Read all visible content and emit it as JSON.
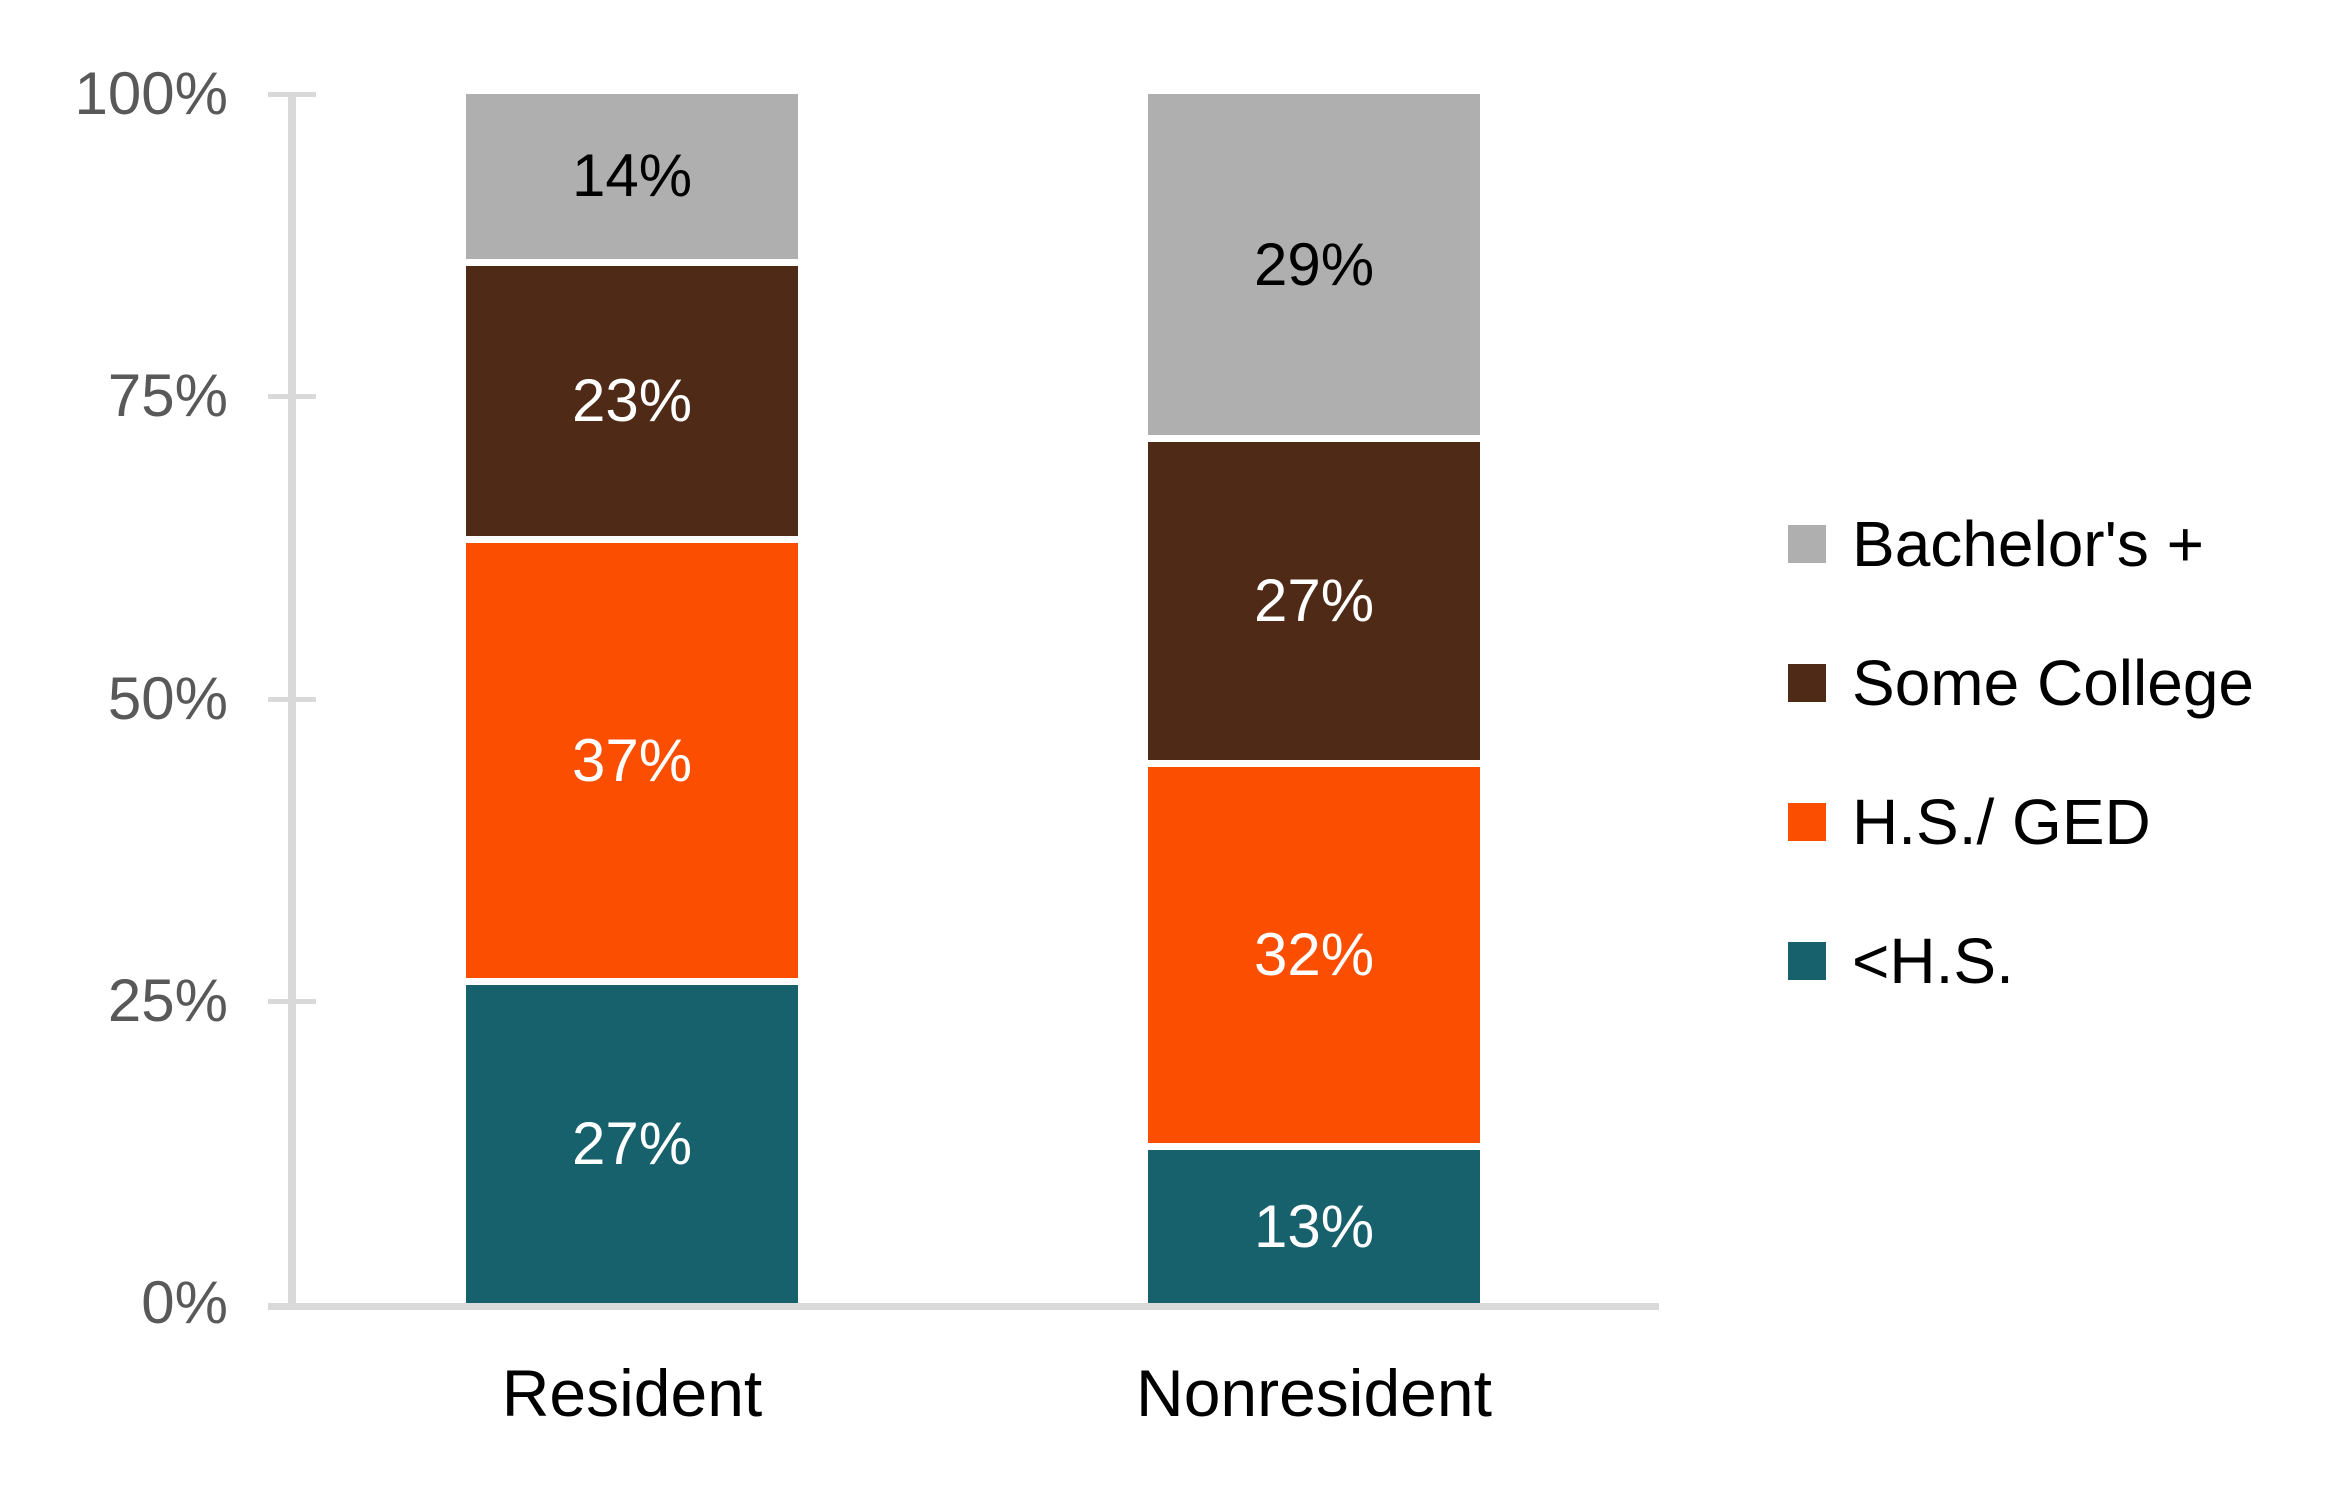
{
  "chart_data": {
    "type": "bar",
    "stacked": true,
    "title": "",
    "xlabel": "",
    "ylabel": "",
    "categories": [
      "Resident",
      "Nonresident"
    ],
    "series": [
      {
        "name": "<H.S.",
        "color": "#16616B",
        "label_color": "#FFFFFF",
        "values": [
          27,
          13
        ],
        "labels": [
          "27%",
          "13%"
        ]
      },
      {
        "name": "H.S./ GED",
        "color": "#FC4E00",
        "label_color": "#FFFFFF",
        "values": [
          37,
          32
        ],
        "labels": [
          "37%",
          "32%"
        ]
      },
      {
        "name": "Some College",
        "color": "#4F2A17",
        "label_color": "#FFFFFF",
        "values": [
          23,
          27
        ],
        "labels": [
          "23%",
          "27%"
        ]
      },
      {
        "name": "Bachelor's +",
        "color": "#B0AFAF",
        "label_color": "#000000",
        "values": [
          14,
          29
        ],
        "labels": [
          "14%",
          "29%"
        ]
      }
    ],
    "y_axis": {
      "range": [
        0,
        100
      ],
      "ticks": [
        {
          "label": "0%",
          "value": 0
        },
        {
          "label": "25%",
          "value": 25
        },
        {
          "label": "50%",
          "value": 50
        },
        {
          "label": "75%",
          "value": 75
        },
        {
          "label": "100%",
          "value": 100
        }
      ],
      "gridlines": false
    },
    "legend": {
      "position": "right",
      "entries": [
        "Bachelor's +",
        "Some College",
        "H.S./ GED",
        "<H.S."
      ]
    },
    "colors": {
      "axis": "#D9D9D9",
      "tick_label": "#595959",
      "category_label": "#000000",
      "background": "#FFFFFF"
    }
  }
}
